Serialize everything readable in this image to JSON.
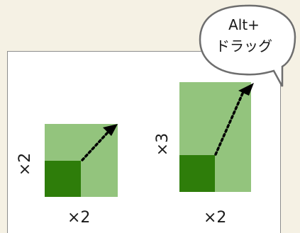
{
  "colors": {
    "background": "#f5f1e4",
    "panel": "#ffffff",
    "light_green": "#93c47d",
    "dark_green": "#2e7d0a",
    "arrow": "#000000"
  },
  "bubble": {
    "line1": "Alt+",
    "line2": "ドラッグ"
  },
  "diagram_left": {
    "width_label": "×2",
    "height_label": "×2"
  },
  "diagram_right": {
    "width_label": "×2",
    "height_label": "×3"
  }
}
